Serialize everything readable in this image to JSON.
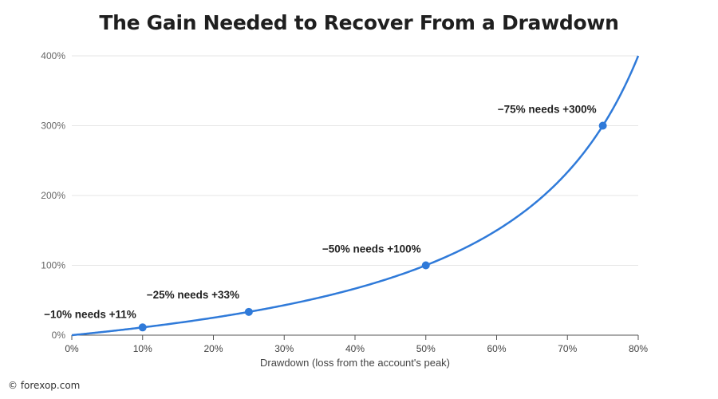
{
  "chart_data": {
    "type": "line",
    "title": "The Gain Needed to Recover From a Drawdown",
    "xlabel": "Drawdown (loss from the account's peak)",
    "ylabel": "",
    "xlim": [
      0,
      80
    ],
    "ylim": [
      0,
      400
    ],
    "x_ticks": [
      "0%",
      "10%",
      "20%",
      "30%",
      "40%",
      "50%",
      "60%",
      "70%",
      "80%"
    ],
    "y_ticks": [
      "0%",
      "100%",
      "200%",
      "300%",
      "400%"
    ],
    "grid": "horizontal",
    "series": [
      {
        "formula": "gain = d / (1 - d)",
        "color": "#2f7ad9"
      }
    ],
    "points": [
      {
        "x": 10,
        "y": 11,
        "label": "−10% needs +11%"
      },
      {
        "x": 25,
        "y": 33,
        "label": "−25% needs +33%"
      },
      {
        "x": 50,
        "y": 100,
        "label": "−50% needs +100%"
      },
      {
        "x": 75,
        "y": 300,
        "label": "−75% needs +300%"
      }
    ]
  },
  "credit": "© forexop.com",
  "colors": {
    "line": "#2f7ad9",
    "grid": "#e6e6e6",
    "axis": "#555555"
  }
}
